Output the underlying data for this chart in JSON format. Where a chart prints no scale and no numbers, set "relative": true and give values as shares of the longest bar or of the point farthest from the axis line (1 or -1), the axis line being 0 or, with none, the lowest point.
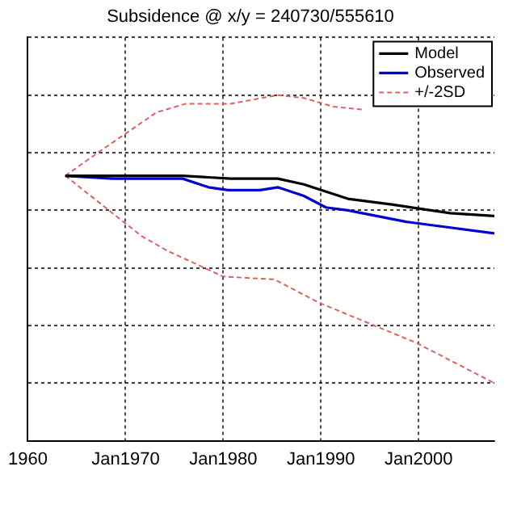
{
  "chart_data": {
    "type": "line",
    "title": "Subsidence @ x/y = 240730/555610",
    "relative": true,
    "grid": true,
    "legend": "top right",
    "xlim": [
      "1960-01",
      "2007-10"
    ],
    "xticks": [
      {
        "value": "1960-01",
        "label": "1960"
      },
      {
        "value": "1970-01",
        "label": "Jan1970"
      },
      {
        "value": "1980-01",
        "label": "Jan1980"
      },
      {
        "value": "1990-01",
        "label": "Jan1990"
      },
      {
        "value": "2000-01",
        "label": "Jan2000"
      }
    ],
    "series": [
      {
        "name": "Model",
        "color": "#000000",
        "line_style": "solid",
        "x": [
          "1963-11",
          "1975-11",
          "1980-10",
          "1985-08",
          "1988-04",
          "1992-10",
          "1997-04",
          "2003-04",
          "2007-10"
        ],
        "values": [
          0.72,
          0.72,
          0.71,
          0.71,
          0.69,
          0.64,
          0.62,
          0.59,
          0.58
        ]
      },
      {
        "name": "Observed",
        "color": "#0000cc",
        "line_style": "solid",
        "x": [
          "1963-11",
          "1968-09",
          "1975-11",
          "1978-07",
          "1980-07",
          "1983-10",
          "1985-08",
          "1988-04",
          "1990-07",
          "1992-10",
          "1998-10",
          "2007-10"
        ],
        "values": [
          0.72,
          0.71,
          0.71,
          0.68,
          0.67,
          0.67,
          0.68,
          0.65,
          0.61,
          0.6,
          0.56,
          0.52
        ]
      },
      {
        "name": "+/-2SD",
        "color": "#e06060",
        "line_style": "dashed",
        "x": [
          "1963-11",
          "1967-03",
          "1970-03",
          "1973-03",
          "1976-03",
          "1980-10",
          "1985-08",
          "1988-04",
          "1991-04",
          "1994-03"
        ],
        "values": [
          0.72,
          0.8,
          0.87,
          0.94,
          0.97,
          0.97,
          1,
          0.99,
          0.96,
          0.95
        ]
      },
      {
        "color": "#e06060",
        "line_style": "dashed",
        "x": [
          "1963-11",
          "1968-09",
          "1971-09",
          "1974-04",
          "1980-01",
          "1985-04",
          "1989-10",
          "1999-10",
          "2007-10"
        ],
        "values": [
          0.72,
          0.59,
          0.51,
          0.46,
          0.37,
          0.36,
          0.28,
          0.14,
          0
        ]
      }
    ]
  }
}
